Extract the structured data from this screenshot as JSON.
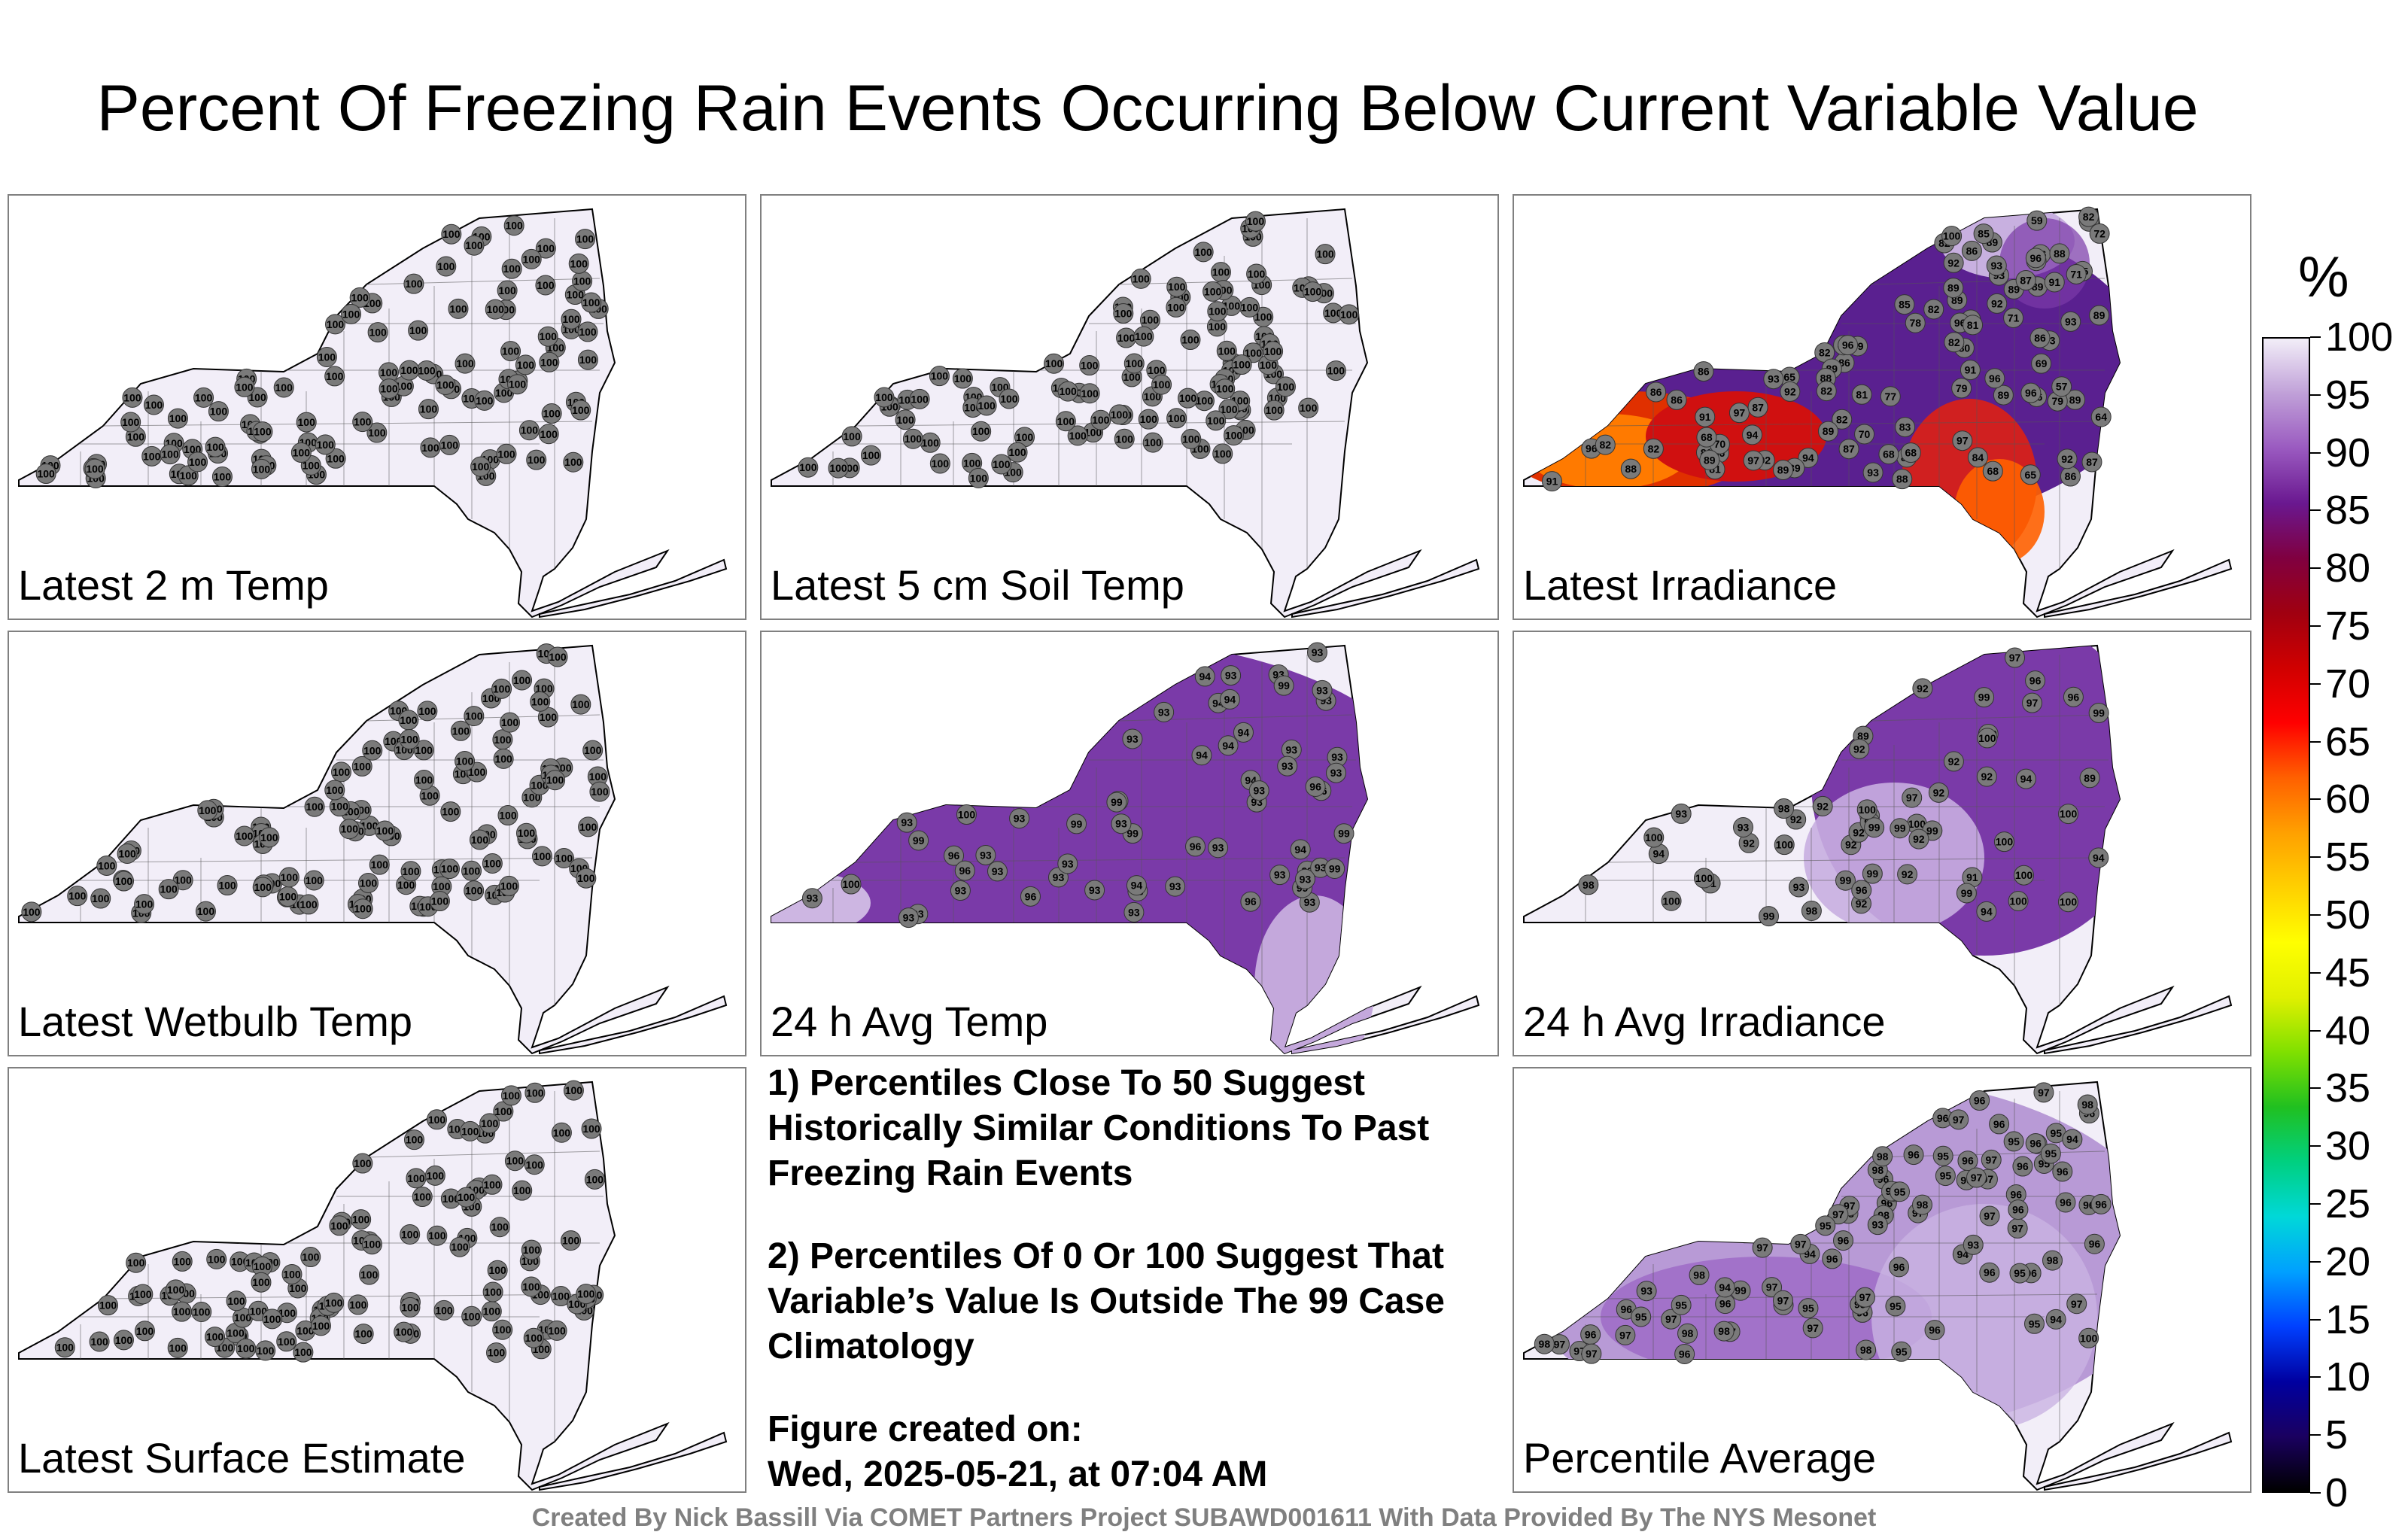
{
  "title": "Percent Of Freezing Rain Events Occurring Below Current Variable Value",
  "panels": [
    {
      "id": "p1",
      "label": "Latest 2 m Temp",
      "mode": "uniform",
      "value": 100
    },
    {
      "id": "p2",
      "label": "Latest 5 cm Soil Temp",
      "mode": "uniform",
      "value": 100
    },
    {
      "id": "p3",
      "label": "Latest Irradiance",
      "mode": "irradiance",
      "values": [
        97,
        87,
        88,
        86,
        92,
        86,
        70,
        92,
        82,
        86,
        97,
        91,
        93,
        92,
        89,
        86,
        94,
        86,
        93,
        89,
        94,
        83,
        96,
        89,
        89,
        89,
        82,
        87,
        89,
        80,
        86,
        96,
        89,
        86,
        87,
        78,
        82,
        86,
        89,
        85,
        94,
        93,
        89,
        91,
        88,
        96,
        82,
        81,
        72,
        86,
        82,
        89,
        96,
        92,
        88,
        87,
        79,
        65,
        82,
        69,
        91,
        89,
        86,
        92,
        84,
        97,
        59,
        71,
        82,
        68,
        81,
        93,
        88,
        92,
        89,
        86,
        70,
        85,
        68,
        64,
        88,
        91,
        93,
        57,
        68,
        81,
        86,
        82,
        71,
        82,
        65,
        68,
        77,
        96,
        69,
        85,
        93,
        89,
        100,
        96,
        82,
        79
      ]
    },
    {
      "id": "p4",
      "label": "Latest Wetbulb Temp",
      "mode": "uniform",
      "value": 100
    },
    {
      "id": "p5",
      "label": "24 h Avg Temp",
      "mode": "avgtemp",
      "values": [
        93,
        93,
        93,
        93,
        93,
        93,
        93,
        93,
        93,
        93,
        93,
        93,
        94,
        94,
        94,
        96,
        93,
        93,
        94,
        93,
        94,
        94,
        93,
        94,
        93,
        93,
        96,
        93,
        93,
        93,
        93,
        94,
        96,
        93,
        96,
        94,
        93,
        93,
        93,
        93,
        99,
        99,
        94,
        93,
        93,
        96,
        99,
        93,
        99,
        96,
        93,
        93,
        99,
        93,
        96,
        99,
        99,
        93,
        99,
        100,
        100
      ]
    },
    {
      "id": "p6",
      "label": "24 h Avg Irradiance",
      "mode": "avgirr",
      "values": [
        92,
        92,
        89,
        89,
        92,
        92,
        92,
        91,
        93,
        92,
        92,
        92,
        97,
        98,
        91,
        92,
        94,
        92,
        92,
        93,
        92,
        98,
        96,
        94,
        100,
        99,
        93,
        94,
        100,
        96,
        99,
        99,
        99,
        92,
        99,
        97,
        94,
        98,
        100,
        92,
        100,
        99,
        100,
        97,
        99,
        96,
        99,
        100,
        94,
        100,
        100,
        100,
        99,
        100,
        100,
        100,
        100
      ]
    },
    {
      "id": "p7",
      "label": "Latest Surface Estimate",
      "mode": "uniform",
      "value": 100
    },
    {
      "id": "p8",
      "label": "Percentile Average",
      "mode": "avg",
      "values": [
        97,
        96,
        96,
        95,
        98,
        94,
        97,
        96,
        97,
        97,
        97,
        96,
        94,
        95,
        95,
        97,
        96,
        97,
        96,
        96,
        96,
        95,
        97,
        97,
        96,
        97,
        96,
        96,
        96,
        95,
        97,
        98,
        98,
        97,
        97,
        96,
        96,
        96,
        96,
        96,
        95,
        97,
        97,
        97,
        96,
        97,
        96,
        98,
        96,
        97,
        98,
        97,
        95,
        95,
        96,
        97,
        94,
        96,
        96,
        97,
        98,
        98,
        93,
        95,
        95,
        96,
        94,
        100,
        96,
        97,
        97,
        95,
        98,
        96,
        97,
        98,
        95,
        93,
        96,
        96,
        95,
        94,
        93,
        98,
        98,
        98,
        97,
        99,
        96,
        95,
        94,
        95,
        95,
        95
      ]
    }
  ],
  "notes": {
    "line1": "1) Percentiles Close To 50 Suggest Historically Similar Conditions To Past Freezing Rain Events",
    "line2": "2) Percentiles Of 0 Or 100 Suggest That Variable’s Value Is Outside The 99 Case Climatology",
    "line3a": "Figure created on:",
    "line3b": "Wed, 2025-05-21, at 07:04 AM"
  },
  "credit": "Created By Nick Bassill Via COMET Partners Project SUBAWD001611 With Data Provided By The NYS Mesonet",
  "colorbar": {
    "unit": "%",
    "ticks": [
      "100",
      "95",
      "90",
      "85",
      "80",
      "75",
      "70",
      "65",
      "60",
      "55",
      "50",
      "45",
      "40",
      "35",
      "30",
      "25",
      "20",
      "15",
      "10",
      "5",
      "0"
    ],
    "colors": [
      "#000000",
      "#1a0060",
      "#0000a0",
      "#0040ff",
      "#00a0ff",
      "#00d8d8",
      "#00d080",
      "#20c020",
      "#80e000",
      "#e0f000",
      "#ffff00",
      "#ffd000",
      "#ffa000",
      "#ff6000",
      "#ff0000",
      "#d00000",
      "#a00010",
      "#800040",
      "#6a1890",
      "#9a5ac0",
      "#c0a0d8",
      "#f2eef8"
    ]
  }
}
